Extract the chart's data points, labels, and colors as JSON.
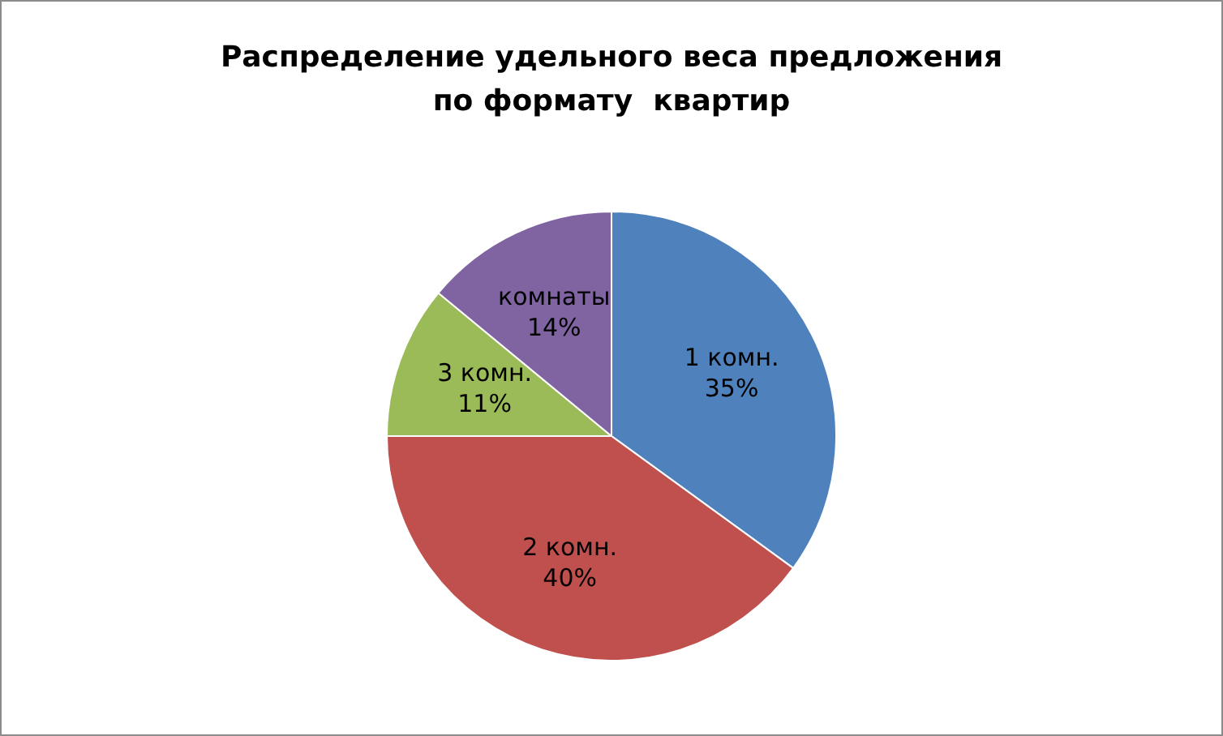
{
  "chart_data": {
    "type": "pie",
    "title": [
      "Распределение удельного веса предложения",
      "по формату  квартир"
    ],
    "categories": [
      "1 комн.",
      "2 комн.",
      "3 комн.",
      "комнаты"
    ],
    "values": [
      35,
      40,
      11,
      14
    ],
    "value_labels": [
      "35%",
      "40%",
      "11%",
      "14%"
    ],
    "colors": [
      "#4f81bd",
      "#c0504d",
      "#9bbb59",
      "#8064a2"
    ],
    "legend": false
  }
}
